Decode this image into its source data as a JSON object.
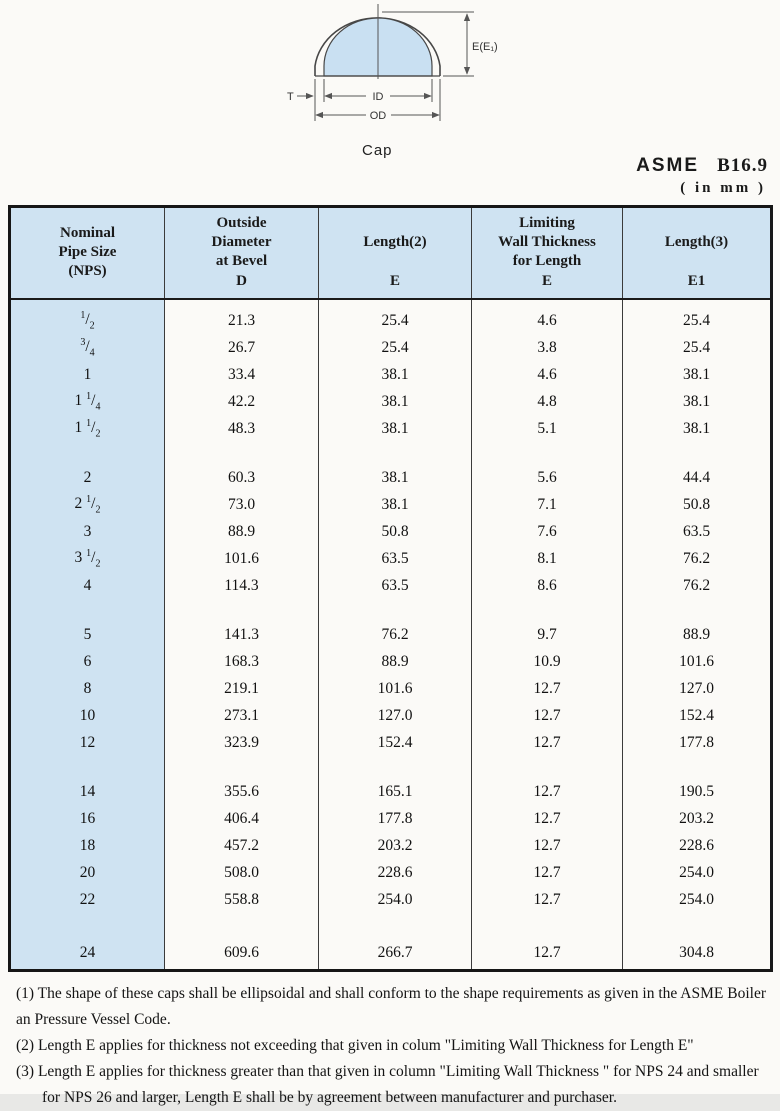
{
  "diagram": {
    "caption": "Cap",
    "labels": {
      "height": "E(E₁)",
      "thickness": "T",
      "inner_diameter": "ID",
      "outer_diameter": "OD"
    },
    "fill_color": "#c9e0f2"
  },
  "heading": {
    "org": "ASME",
    "number": "B16.9",
    "units": "( in mm )"
  },
  "table": {
    "columns": [
      {
        "lines": [
          "Nominal",
          "Pipe Size",
          "(NPS)"
        ],
        "symbol": "",
        "gap": false
      },
      {
        "lines": [
          "Outside",
          "Diameter",
          "at Bevel"
        ],
        "symbol": "D",
        "gap": false
      },
      {
        "lines": [
          "Length(2)"
        ],
        "symbol": "E",
        "gap": true
      },
      {
        "lines": [
          "Limiting",
          "Wall Thickness",
          "for Length"
        ],
        "symbol": "E",
        "gap": false
      },
      {
        "lines": [
          "Length(3)"
        ],
        "symbol": "E1",
        "gap": true
      }
    ],
    "groups": [
      [
        [
          "1/2",
          "21.3",
          "25.4",
          "4.6",
          "25.4"
        ],
        [
          "3/4",
          "26.7",
          "25.4",
          "3.8",
          "25.4"
        ],
        [
          "1",
          "33.4",
          "38.1",
          "4.6",
          "38.1"
        ],
        [
          "1 1/4",
          "42.2",
          "38.1",
          "4.8",
          "38.1"
        ],
        [
          "1 1/2",
          "48.3",
          "38.1",
          "5.1",
          "38.1"
        ]
      ],
      [
        [
          "2",
          "60.3",
          "38.1",
          "5.6",
          "44.4"
        ],
        [
          "2 1/2",
          "73.0",
          "38.1",
          "7.1",
          "50.8"
        ],
        [
          "3",
          "88.9",
          "50.8",
          "7.6",
          "63.5"
        ],
        [
          "3 1/2",
          "101.6",
          "63.5",
          "8.1",
          "76.2"
        ],
        [
          "4",
          "114.3",
          "63.5",
          "8.6",
          "76.2"
        ]
      ],
      [
        [
          "5",
          "141.3",
          "76.2",
          "9.7",
          "88.9"
        ],
        [
          "6",
          "168.3",
          "88.9",
          "10.9",
          "101.6"
        ],
        [
          "8",
          "219.1",
          "101.6",
          "12.7",
          "127.0"
        ],
        [
          "10",
          "273.1",
          "127.0",
          "12.7",
          "152.4"
        ],
        [
          "12",
          "323.9",
          "152.4",
          "12.7",
          "177.8"
        ]
      ],
      [
        [
          "14",
          "355.6",
          "165.1",
          "12.7",
          "190.5"
        ],
        [
          "16",
          "406.4",
          "177.8",
          "12.7",
          "203.2"
        ],
        [
          "18",
          "457.2",
          "203.2",
          "12.7",
          "228.6"
        ],
        [
          "20",
          "508.0",
          "228.6",
          "12.7",
          "254.0"
        ],
        [
          "22",
          "558.8",
          "254.0",
          "12.7",
          "254.0"
        ]
      ],
      [
        [
          "24",
          "609.6",
          "266.7",
          "12.7",
          "304.8"
        ]
      ]
    ],
    "header_bg": "#cfe3f2"
  },
  "footnotes": [
    {
      "text": "(1) The shape of these caps shall be ellipsoidal and shall conform to the shape requirements as given in the ASME Boiler",
      "indent": false
    },
    {
      "text": "an Pressure Vessel Code.",
      "indent": false
    },
    {
      "text": "(2) Length E applies for thickness not exceeding that given in colum \"Limiting Wall Thickness for Length E\"",
      "indent": false
    },
    {
      "text": "(3) Length E applies for thickness greater than that given in column \"Limiting Wall Thickness \" for NPS 24 and smaller",
      "indent": false
    },
    {
      "text": "for NPS 26 and larger, Length E shall be by agreement between manufacturer and purchaser.",
      "indent": true
    }
  ]
}
